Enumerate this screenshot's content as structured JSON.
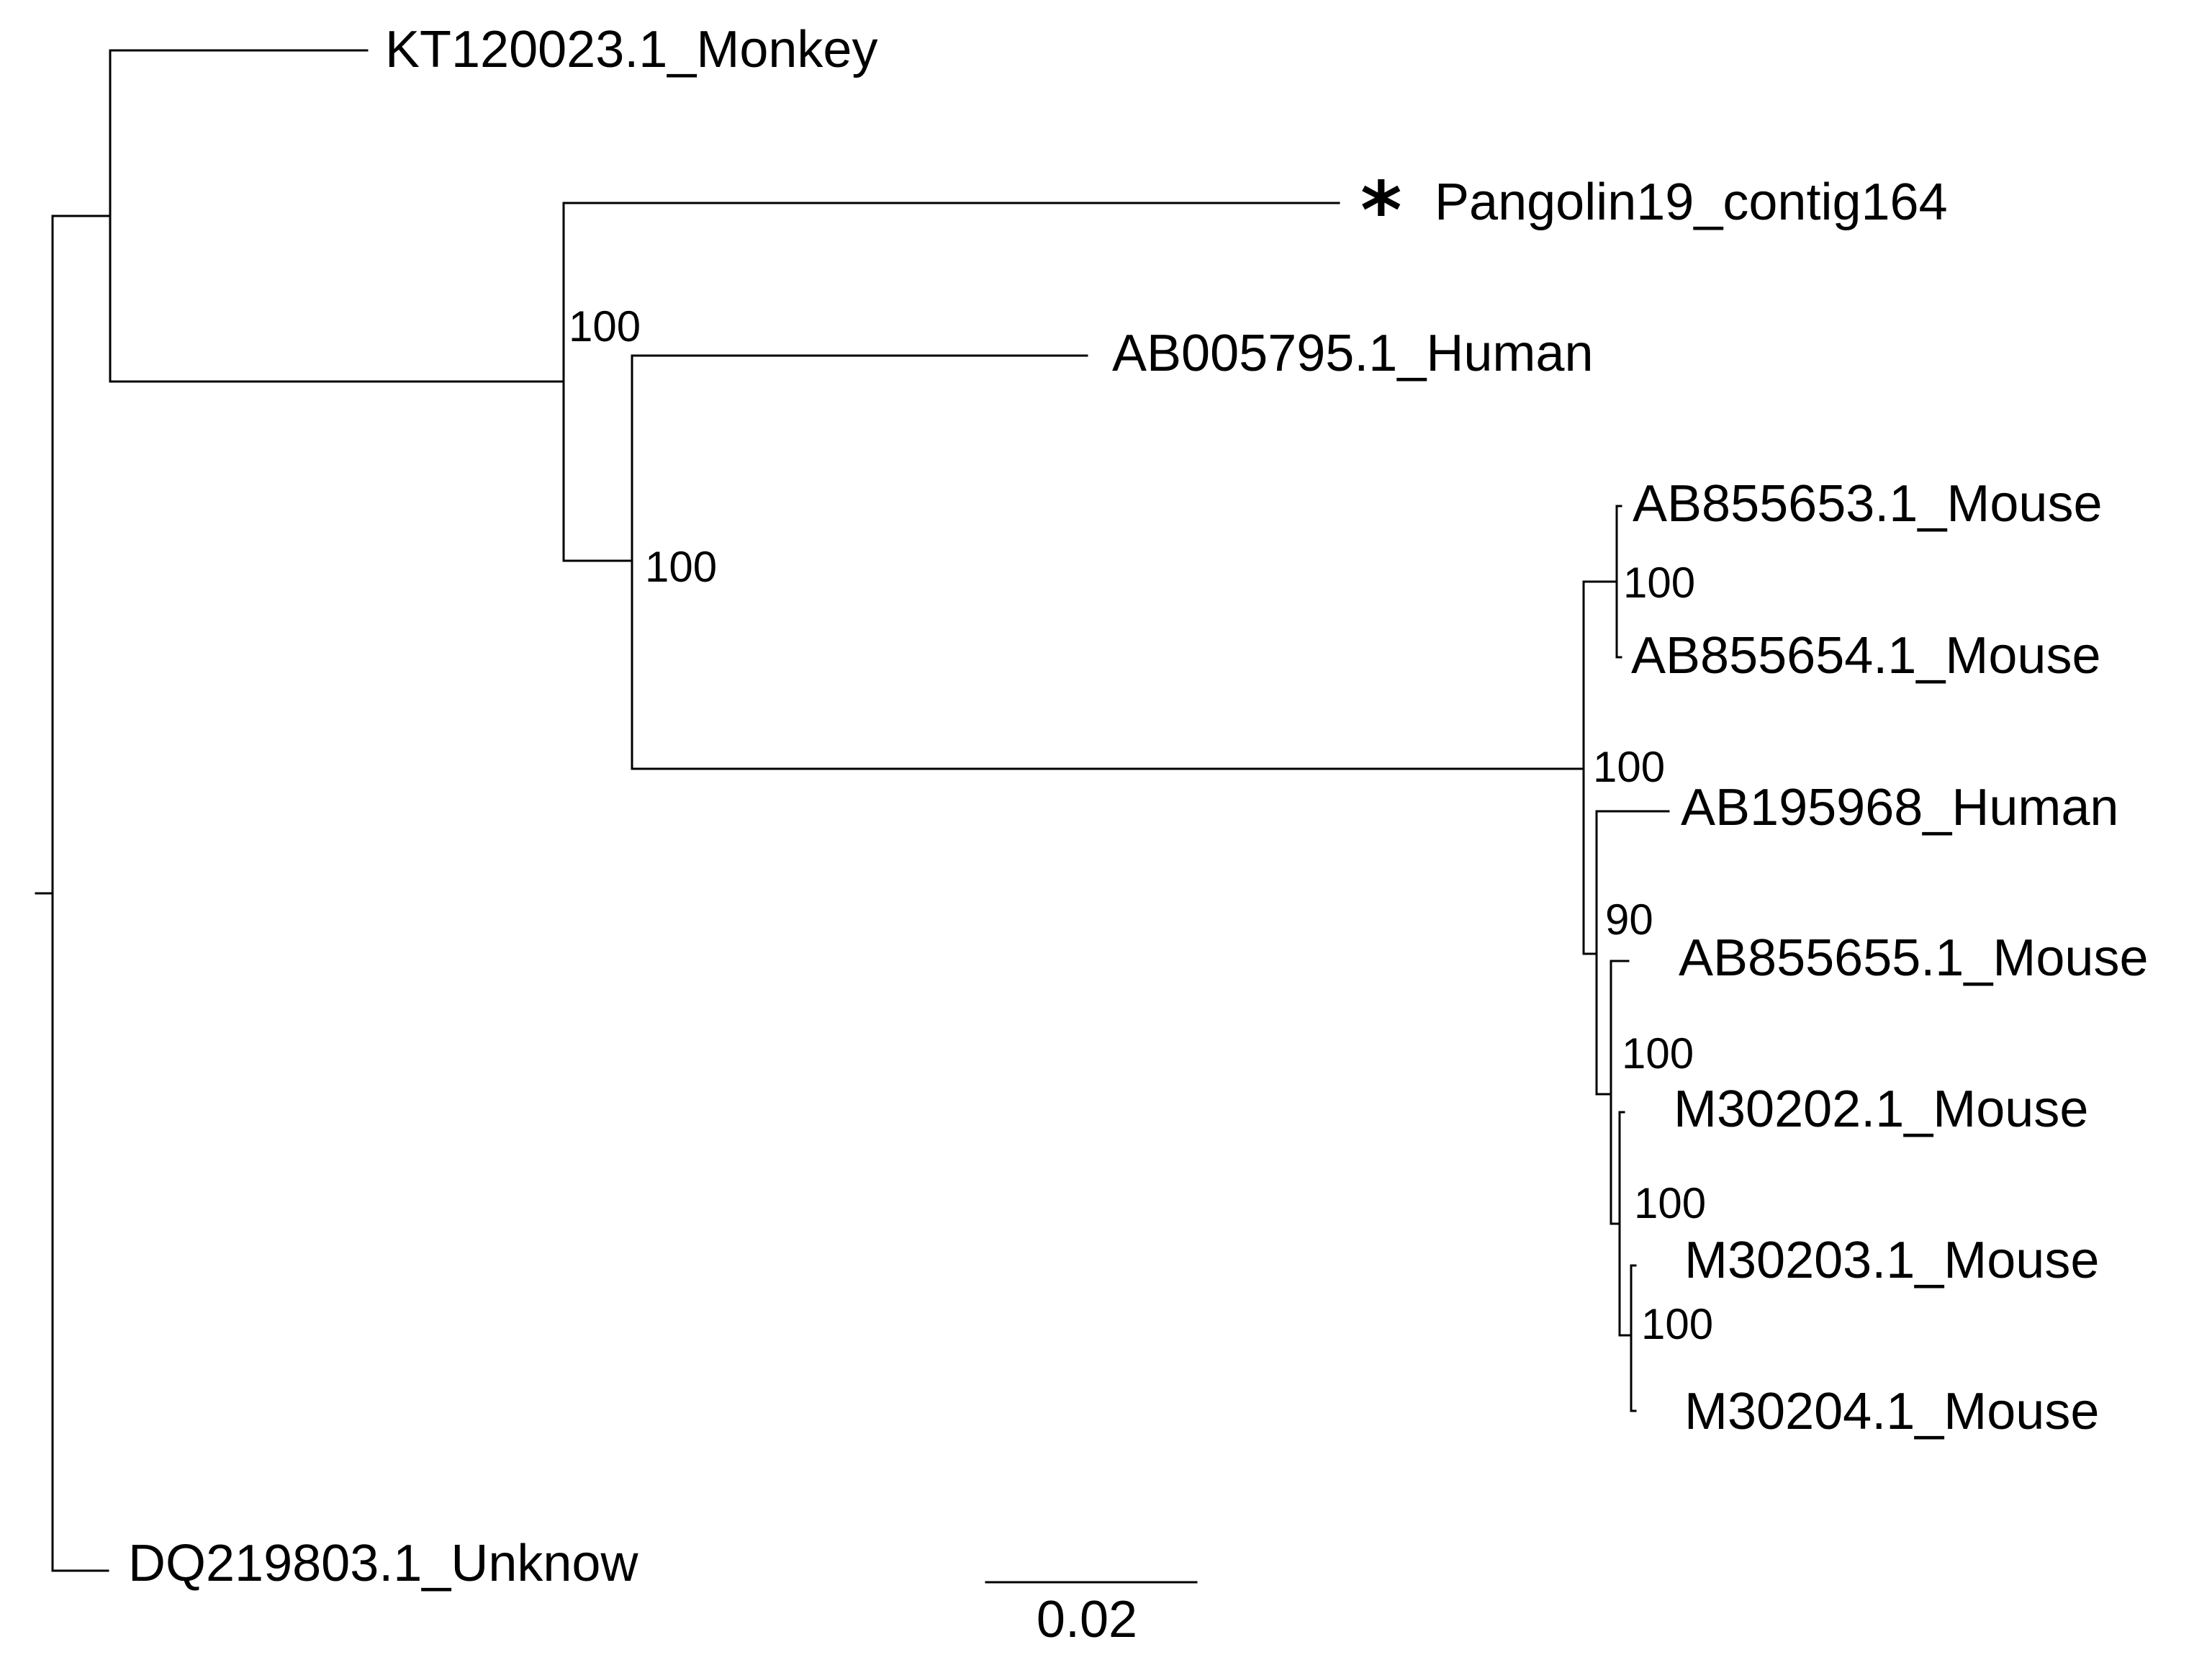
{
  "tree": {
    "taxa": {
      "monkey": "KT120023.1_Monkey",
      "pangolin": "Pangolin19_contig164",
      "human_ab005795": "AB005795.1_Human",
      "mouse_ab855653": "AB855653.1_Mouse",
      "mouse_ab855654": "AB855654.1_Mouse",
      "human_ab195968": "AB195968_Human",
      "mouse_ab855655": "AB855655.1_Mouse",
      "mouse_m30202": "M30202.1_Mouse",
      "mouse_m30203": "M30203.1_Mouse",
      "mouse_m30204": "M30204.1_Mouse",
      "unknown": "DQ219803.1_Unknow"
    },
    "marker": "*",
    "support": {
      "pangolin_human_node": "100",
      "human_mouse_node": "100",
      "mouse_653_654": "100",
      "mouse_clade": "100",
      "human_195968_node": "90",
      "mouse_655_node": "100",
      "m30202_node": "100",
      "m30203_m30204": "100"
    },
    "scale_bar": {
      "label": "0.02",
      "value": 0.02
    }
  }
}
